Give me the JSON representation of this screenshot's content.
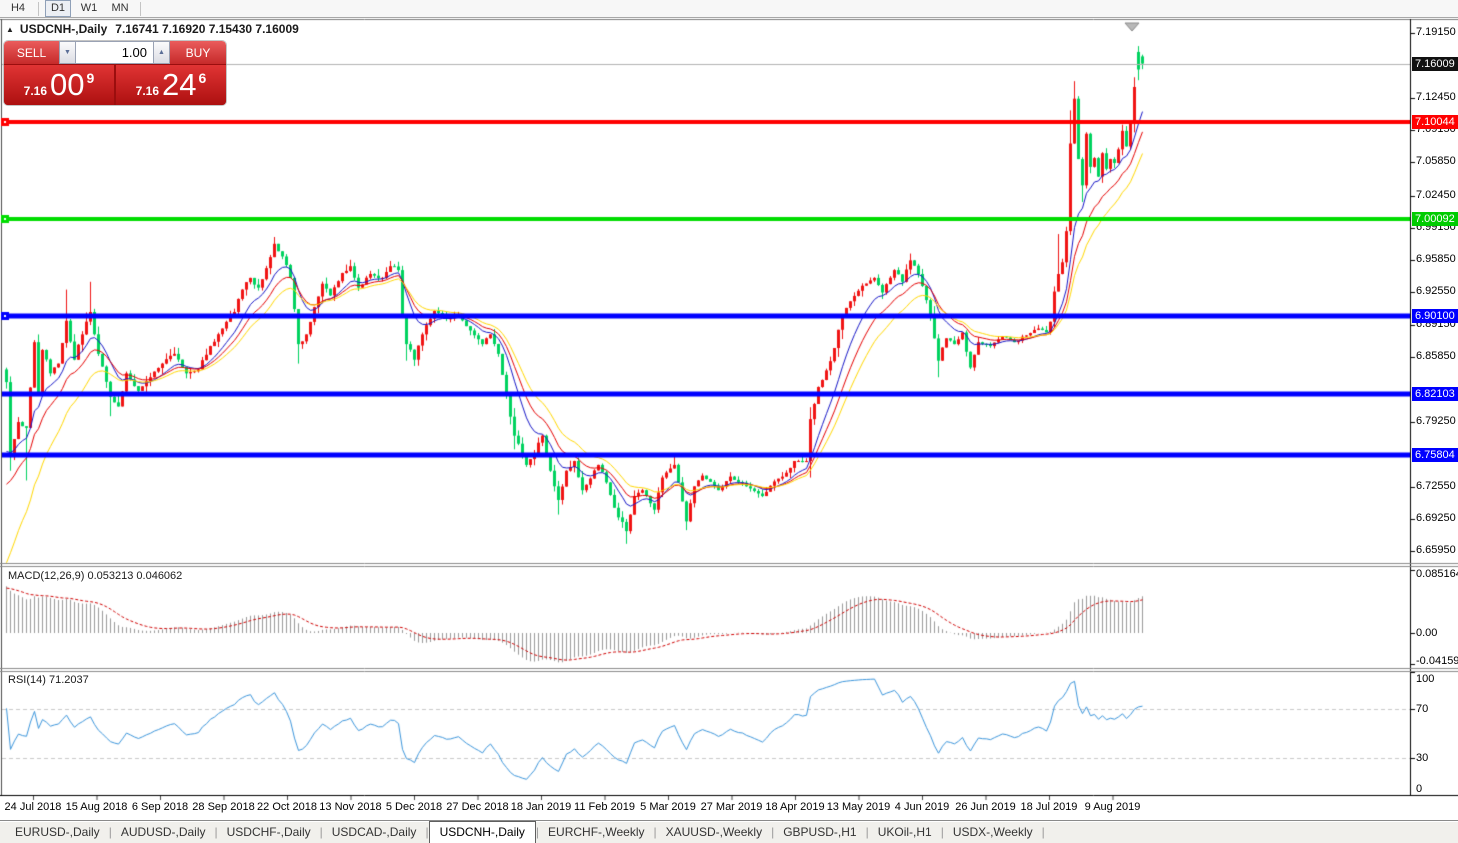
{
  "toolbar": {
    "buttons": [
      {
        "label": "H4",
        "active": false
      },
      {
        "label": "D1",
        "active": true
      },
      {
        "label": "W1",
        "active": false
      },
      {
        "label": "MN",
        "active": false
      }
    ]
  },
  "chart_header": {
    "collapse_icon": "▲",
    "title": "USDCNH-,Daily",
    "ohlc": "7.16741 7.16920 7.15430 7.16009"
  },
  "one_click": {
    "sell_label": "SELL",
    "buy_label": "BUY",
    "volume": "1.00",
    "spin_down_icon": "▼",
    "spin_up_icon": "▲",
    "sell_price": {
      "prefix": "7.16",
      "big": "00",
      "sup": "9"
    },
    "buy_price": {
      "prefix": "7.16",
      "big": "24",
      "sup": "6"
    }
  },
  "price_scale": {
    "ticks": [
      {
        "label": "7.19150",
        "value": 7.1915
      },
      {
        "label": "7.12450",
        "value": 7.1245
      },
      {
        "label": "7.09150",
        "value": 7.0915
      },
      {
        "label": "7.05850",
        "value": 7.0585
      },
      {
        "label": "7.02450",
        "value": 7.0245
      },
      {
        "label": "6.99150",
        "value": 6.9915
      },
      {
        "label": "6.95850",
        "value": 6.9585
      },
      {
        "label": "6.92550",
        "value": 6.9255
      },
      {
        "label": "6.89150",
        "value": 6.8915
      },
      {
        "label": "6.85850",
        "value": 6.8585
      },
      {
        "label": "6.79250",
        "value": 6.7925
      },
      {
        "label": "6.72550",
        "value": 6.7255
      },
      {
        "label": "6.69250",
        "value": 6.6925
      },
      {
        "label": "6.65950",
        "value": 6.6595
      }
    ],
    "badges": [
      {
        "label": "7.16009",
        "value": 7.16009,
        "bg": "#111111",
        "fg": "#ffffff"
      },
      {
        "label": "7.10044",
        "value": 7.10044,
        "bg": "#ff0000",
        "fg": "#ffffff"
      },
      {
        "label": "7.00092",
        "value": 7.00092,
        "bg": "#00cc00",
        "fg": "#ffffff"
      },
      {
        "label": "6.90100",
        "value": 6.901,
        "bg": "#0000ff",
        "fg": "#ffffff"
      },
      {
        "label": "6.82103",
        "value": 6.82103,
        "bg": "#0000ff",
        "fg": "#ffffff"
      },
      {
        "label": "6.75804",
        "value": 6.75804,
        "bg": "#0000ff",
        "fg": "#ffffff"
      }
    ]
  },
  "indicator_panels": {
    "macd": {
      "label": "MACD(12,26,9) 0.053213 0.046062",
      "scale": [
        {
          "label": "0.085164",
          "value": 0.085164
        },
        {
          "label": "0.00",
          "value": 0
        },
        {
          "label": "-0.04159",
          "value": -0.04159
        }
      ]
    },
    "rsi": {
      "label": "RSI(14) 71.2037",
      "scale": [
        {
          "label": "100",
          "value": 100
        },
        {
          "label": "70",
          "value": 70
        },
        {
          "label": "30",
          "value": 30
        },
        {
          "label": "0",
          "value": 0
        }
      ]
    }
  },
  "date_axis": {
    "labels": [
      "24 Jul 2018",
      "15 Aug 2018",
      "6 Sep 2018",
      "28 Sep 2018",
      "22 Oct 2018",
      "13 Nov 2018",
      "5 Dec 2018",
      "27 Dec 2018",
      "18 Jan 2019",
      "11 Feb 2019",
      "5 Mar 2019",
      "27 Mar 2019",
      "18 Apr 2019",
      "13 May 2019",
      "4 Jun 2019",
      "26 Jun 2019",
      "18 Jul 2019",
      "9 Aug 2019"
    ]
  },
  "tab_bar": {
    "tabs": [
      {
        "label": "EURUSD-,Daily",
        "active": false
      },
      {
        "label": "AUDUSD-,Daily",
        "active": false
      },
      {
        "label": "USDCHF-,Daily",
        "active": false
      },
      {
        "label": "USDCAD-,Daily",
        "active": false
      },
      {
        "label": "USDCNH-,Daily",
        "active": true
      },
      {
        "label": "EURCHF-,Weekly",
        "active": false
      },
      {
        "label": "XAUUSD-,Weekly",
        "active": false
      },
      {
        "label": "GBPUSD-,H1",
        "active": false
      },
      {
        "label": "UKOil-,H1",
        "active": false
      },
      {
        "label": "USDX-,Weekly",
        "active": false
      }
    ]
  },
  "chart_data": {
    "type": "candlestick",
    "symbol": "USDCNH",
    "timeframe": "Daily",
    "convention": {
      "bull_color": "#f01414",
      "bear_color": "#00d25f",
      "note": "red = up candle, green = down candle"
    },
    "last_candle_ohlc": {
      "open": 7.16741,
      "high": 7.1692,
      "low": 7.1543,
      "close": 7.16009
    },
    "bid": 7.16009,
    "ask": 7.16246,
    "y_axis": {
      "min": 6.6483,
      "max": 7.2048
    },
    "horizontal_lines": [
      {
        "price": 7.10044,
        "color": "#ff0000",
        "width": 4,
        "marker": true
      },
      {
        "price": 7.00092,
        "color": "#00dd00",
        "width": 4,
        "marker": true
      },
      {
        "price": 6.901,
        "color": "#0000ff",
        "width": 5,
        "marker": true
      },
      {
        "price": 6.82103,
        "color": "#0000ff",
        "width": 5,
        "marker": false
      },
      {
        "price": 6.75804,
        "color": "#0000ff",
        "width": 5,
        "marker": false
      }
    ],
    "current_price_line": {
      "price": 7.16009,
      "color": "#b2b2b2"
    },
    "candle_count": 285,
    "first_open": 6.846,
    "render_seed": 20190827,
    "close_anchors": [
      [
        0,
        6.833,
        0.006,
        null,
        null
      ],
      [
        1,
        6.756,
        0.005,
        null,
        6.742
      ],
      [
        3,
        6.792,
        0.006,
        null,
        null
      ],
      [
        5,
        6.786,
        0.007,
        null,
        6.732
      ],
      [
        7,
        6.874,
        0.007,
        null,
        null
      ],
      [
        8,
        6.822,
        0.006,
        null,
        null
      ],
      [
        9,
        6.866,
        0.006,
        null,
        null
      ],
      [
        11,
        6.842,
        0.006,
        null,
        null
      ],
      [
        13,
        6.852,
        0.006,
        null,
        null
      ],
      [
        15,
        6.896,
        0.008,
        6.928,
        null
      ],
      [
        17,
        6.856,
        0.007,
        null,
        null
      ],
      [
        19,
        6.882,
        0.007,
        null,
        null
      ],
      [
        21,
        6.905,
        0.007,
        6.936,
        null
      ],
      [
        23,
        6.862,
        0.007,
        null,
        null
      ],
      [
        26,
        6.818,
        0.007,
        null,
        6.798
      ],
      [
        28,
        6.808,
        0.006,
        null,
        null
      ],
      [
        30,
        6.842,
        0.006,
        null,
        null
      ],
      [
        33,
        6.824,
        0.005,
        null,
        null
      ],
      [
        36,
        6.838,
        0.005,
        null,
        null
      ],
      [
        39,
        6.852,
        0.005,
        null,
        null
      ],
      [
        42,
        6.862,
        0.005,
        null,
        null
      ],
      [
        45,
        6.842,
        0.005,
        null,
        null
      ],
      [
        48,
        6.846,
        0.004,
        null,
        null
      ],
      [
        51,
        6.87,
        0.005,
        null,
        null
      ],
      [
        54,
        6.888,
        0.005,
        null,
        null
      ],
      [
        57,
        6.905,
        0.005,
        null,
        null
      ],
      [
        59,
        6.928,
        0.005,
        null,
        null
      ],
      [
        61,
        6.94,
        0.005,
        null,
        null
      ],
      [
        63,
        6.93,
        0.005,
        null,
        null
      ],
      [
        65,
        6.95,
        0.005,
        null,
        null
      ],
      [
        67,
        6.975,
        0.005,
        6.982,
        null
      ],
      [
        69,
        6.962,
        0.006,
        null,
        null
      ],
      [
        71,
        6.94,
        0.007,
        null,
        null
      ],
      [
        72,
        6.908,
        0.008,
        null,
        null
      ],
      [
        73,
        6.872,
        0.008,
        null,
        6.852
      ],
      [
        75,
        6.882,
        0.006,
        null,
        null
      ],
      [
        77,
        6.91,
        0.006,
        null,
        null
      ],
      [
        79,
        6.934,
        0.006,
        null,
        null
      ],
      [
        81,
        6.922,
        0.005,
        null,
        null
      ],
      [
        84,
        6.945,
        0.005,
        null,
        null
      ],
      [
        86,
        6.952,
        0.005,
        null,
        null
      ],
      [
        88,
        6.93,
        0.005,
        null,
        null
      ],
      [
        91,
        6.944,
        0.005,
        null,
        null
      ],
      [
        94,
        6.94,
        0.005,
        null,
        null
      ],
      [
        96,
        6.952,
        0.005,
        null,
        null
      ],
      [
        98,
        6.948,
        0.005,
        null,
        null
      ],
      [
        99,
        6.902,
        0.008,
        null,
        null
      ],
      [
        100,
        6.872,
        0.007,
        null,
        6.855
      ],
      [
        102,
        6.856,
        0.005,
        null,
        null
      ],
      [
        104,
        6.882,
        0.005,
        null,
        null
      ],
      [
        107,
        6.906,
        0.005,
        null,
        null
      ],
      [
        110,
        6.898,
        0.004,
        null,
        null
      ],
      [
        113,
        6.902,
        0.004,
        null,
        null
      ],
      [
        116,
        6.886,
        0.004,
        null,
        null
      ],
      [
        119,
        6.872,
        0.004,
        null,
        null
      ],
      [
        121,
        6.882,
        0.004,
        null,
        null
      ],
      [
        123,
        6.862,
        0.005,
        null,
        null
      ],
      [
        125,
        6.822,
        0.006,
        null,
        null
      ],
      [
        127,
        6.778,
        0.007,
        null,
        6.764
      ],
      [
        130,
        6.748,
        0.006,
        null,
        null
      ],
      [
        132,
        6.76,
        0.005,
        null,
        null
      ],
      [
        134,
        6.778,
        0.005,
        null,
        null
      ],
      [
        136,
        6.742,
        0.005,
        null,
        null
      ],
      [
        138,
        6.712,
        0.006,
        null,
        6.697
      ],
      [
        140,
        6.742,
        0.005,
        null,
        null
      ],
      [
        142,
        6.752,
        0.005,
        null,
        null
      ],
      [
        144,
        6.722,
        0.005,
        null,
        null
      ],
      [
        146,
        6.734,
        0.004,
        null,
        null
      ],
      [
        148,
        6.748,
        0.004,
        null,
        null
      ],
      [
        150,
        6.73,
        0.005,
        null,
        null
      ],
      [
        152,
        6.704,
        0.005,
        null,
        null
      ],
      [
        155,
        6.68,
        0.006,
        null,
        6.667
      ],
      [
        157,
        6.716,
        0.005,
        null,
        null
      ],
      [
        159,
        6.722,
        0.004,
        null,
        null
      ],
      [
        162,
        6.702,
        0.004,
        null,
        null
      ],
      [
        164,
        6.735,
        0.004,
        null,
        null
      ],
      [
        167,
        6.748,
        0.004,
        6.757,
        null
      ],
      [
        170,
        6.69,
        0.006,
        null,
        6.681
      ],
      [
        172,
        6.726,
        0.004,
        null,
        null
      ],
      [
        174,
        6.737,
        0.004,
        null,
        null
      ],
      [
        178,
        6.722,
        0.004,
        null,
        null
      ],
      [
        181,
        6.736,
        0.004,
        null,
        null
      ],
      [
        185,
        6.726,
        0.004,
        null,
        null
      ],
      [
        189,
        6.716,
        0.004,
        null,
        null
      ],
      [
        192,
        6.731,
        0.004,
        null,
        null
      ],
      [
        195,
        6.74,
        0.004,
        null,
        null
      ],
      [
        197,
        6.752,
        0.004,
        null,
        null
      ],
      [
        200,
        6.752,
        0.005,
        null,
        null
      ],
      [
        201,
        6.795,
        0.01,
        null,
        6.735
      ],
      [
        203,
        6.828,
        0.007,
        null,
        null
      ],
      [
        205,
        6.845,
        0.007,
        null,
        null
      ],
      [
        207,
        6.868,
        0.007,
        null,
        null
      ],
      [
        209,
        6.902,
        0.007,
        null,
        null
      ],
      [
        211,
        6.916,
        0.005,
        null,
        null
      ],
      [
        214,
        6.932,
        0.005,
        null,
        null
      ],
      [
        217,
        6.94,
        0.005,
        null,
        null
      ],
      [
        219,
        6.925,
        0.005,
        null,
        null
      ],
      [
        222,
        6.948,
        0.005,
        null,
        null
      ],
      [
        224,
        6.936,
        0.005,
        null,
        null
      ],
      [
        226,
        6.958,
        0.005,
        6.965,
        null
      ],
      [
        228,
        6.944,
        0.005,
        null,
        null
      ],
      [
        231,
        6.902,
        0.006,
        null,
        null
      ],
      [
        233,
        6.855,
        0.007,
        null,
        6.838
      ],
      [
        235,
        6.878,
        0.005,
        null,
        null
      ],
      [
        237,
        6.872,
        0.004,
        null,
        null
      ],
      [
        239,
        6.884,
        0.005,
        null,
        null
      ],
      [
        241,
        6.848,
        0.006,
        null,
        null
      ],
      [
        243,
        6.874,
        0.004,
        null,
        null
      ],
      [
        246,
        6.87,
        0.003,
        null,
        null
      ],
      [
        249,
        6.88,
        0.003,
        null,
        null
      ],
      [
        252,
        6.874,
        0.003,
        null,
        null
      ],
      [
        255,
        6.881,
        0.003,
        null,
        null
      ],
      [
        258,
        6.888,
        0.003,
        null,
        null
      ],
      [
        260,
        6.884,
        0.004,
        null,
        null
      ],
      [
        261,
        6.895,
        0.005,
        null,
        null
      ],
      [
        262,
        6.926,
        0.007,
        null,
        null
      ],
      [
        263,
        6.944,
        0.008,
        6.985,
        null
      ],
      [
        264,
        6.956,
        0.006,
        null,
        null
      ],
      [
        265,
        6.988,
        0.007,
        null,
        null
      ],
      [
        266,
        7.078,
        0.012,
        7.112,
        6.984
      ],
      [
        267,
        7.124,
        0.008,
        7.142,
        null
      ],
      [
        268,
        7.062,
        0.008,
        null,
        null
      ],
      [
        269,
        7.035,
        0.007,
        null,
        7.018
      ],
      [
        270,
        7.088,
        0.006,
        null,
        null
      ],
      [
        271,
        7.054,
        0.006,
        null,
        null
      ],
      [
        272,
        7.063,
        0.005,
        null,
        null
      ],
      [
        273,
        7.044,
        0.005,
        null,
        null
      ],
      [
        274,
        7.068,
        0.005,
        null,
        null
      ],
      [
        275,
        7.052,
        0.005,
        null,
        null
      ],
      [
        276,
        7.062,
        0.004,
        null,
        null
      ],
      [
        277,
        7.058,
        0.004,
        null,
        null
      ],
      [
        278,
        7.072,
        0.004,
        null,
        null
      ],
      [
        279,
        7.091,
        0.005,
        null,
        null
      ],
      [
        280,
        7.075,
        0.005,
        null,
        null
      ],
      [
        281,
        7.098,
        0.005,
        null,
        null
      ],
      [
        282,
        7.136,
        0.007,
        7.146,
        null
      ]
    ],
    "explicit_candles": [
      {
        "i": 283,
        "o": 7.172,
        "h": 7.178,
        "l": 7.143,
        "c": 7.154
      },
      {
        "i": 284,
        "o": 7.16741,
        "h": 7.1692,
        "l": 7.1543,
        "c": 7.16009
      }
    ],
    "moving_averages": [
      {
        "period": 9,
        "method": "ema",
        "color": "#1616c8",
        "seed": 6.744
      },
      {
        "period": 14,
        "method": "ema",
        "color": "#e60000",
        "seed": 6.712
      },
      {
        "period": 20,
        "method": "ema",
        "color": "#ffd800",
        "seed": 6.628
      }
    ],
    "macd": {
      "fast": 12,
      "slow": 26,
      "signal": 9,
      "seed_fast": 6.762,
      "seed_slow": 6.7,
      "seed_signal": 0.06,
      "hist_color": "#9a9a9a",
      "signal_color": "#d00000",
      "y_range": {
        "min": -0.0459,
        "max": 0.0891
      },
      "current": 0.053213,
      "current_signal": 0.046062
    },
    "rsi": {
      "period": 14,
      "seed_gain": 0.005,
      "seed_loss": 0.0021,
      "color": "#3c96dc",
      "levels": [
        70,
        30
      ],
      "current": 71.2037
    }
  }
}
